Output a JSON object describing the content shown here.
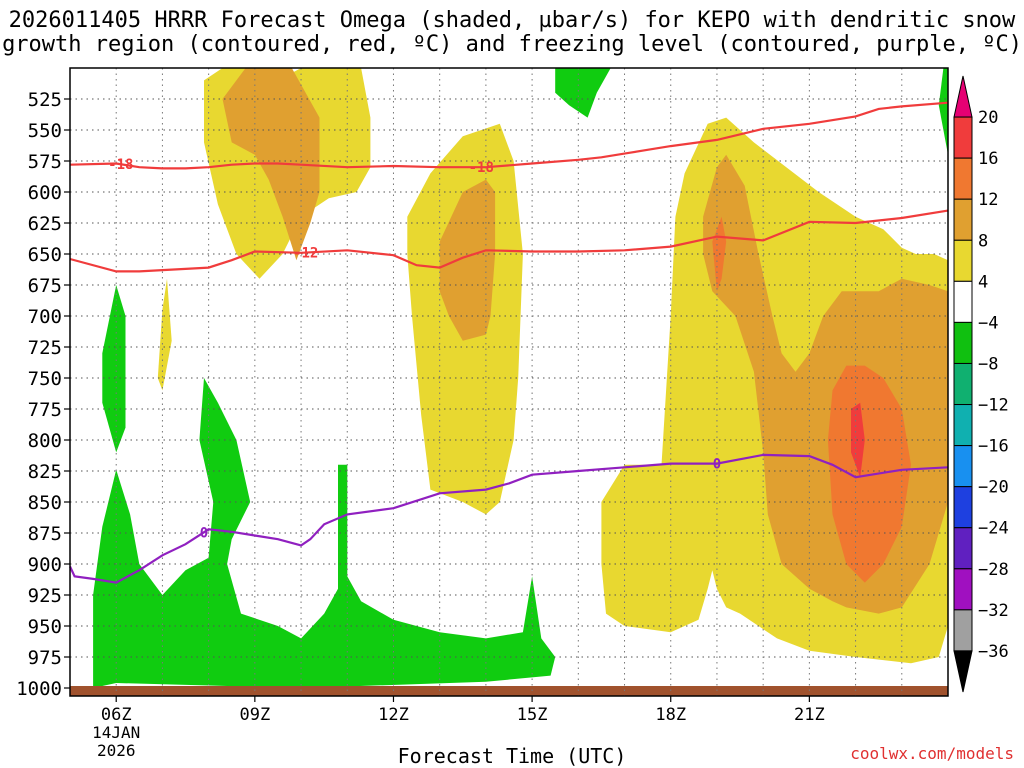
{
  "title_line1": "2026011405 HRRR Forecast Omega (shaded, µbar/s) for KEPO with dendritic snow",
  "title_line2": "growth region (contoured, red, ºC) and freezing level (contoured, purple, ºC)",
  "xlabel": "Forecast Time (UTC)",
  "credit": "coolwx.com/models",
  "chart_data": {
    "type": "heatmap",
    "x_range": [
      5,
      24
    ],
    "y_range": [
      1000,
      500
    ],
    "y_ticks": [
      525,
      550,
      575,
      600,
      625,
      650,
      675,
      700,
      725,
      750,
      775,
      800,
      825,
      850,
      875,
      900,
      925,
      950,
      975,
      1000
    ],
    "y_tick_labels": [
      "525",
      "550",
      "575",
      "600",
      "625",
      "650",
      "675",
      "700",
      "725",
      "750",
      "775",
      "800",
      "825",
      "850",
      "875",
      "900",
      "925",
      "950",
      "975",
      "1000"
    ],
    "x_ticks": [
      {
        "x": 6,
        "label": "06Z",
        "sub1": "14JAN",
        "sub2": "2026"
      },
      {
        "x": 9,
        "label": "09Z"
      },
      {
        "x": 12,
        "label": "12Z"
      },
      {
        "x": 15,
        "label": "15Z"
      },
      {
        "x": 18,
        "label": "18Z"
      },
      {
        "x": 21,
        "label": "21Z"
      }
    ],
    "colorbar": {
      "levels": [
        20,
        16,
        12,
        8,
        4,
        -4,
        -8,
        -12,
        -16,
        -20,
        -24,
        -28,
        -32,
        -36
      ],
      "labels": [
        "20",
        "16",
        "12",
        "8",
        "4",
        "−4",
        "−8",
        "−12",
        "−16",
        "−20",
        "−24",
        "−28",
        "−32",
        "−36"
      ],
      "colors": [
        "#e60073",
        "#f03c3c",
        "#f07830",
        "#e0a030",
        "#e8d830",
        "#ffffff",
        "#10c010",
        "#10b070",
        "#10b0b0",
        "#1890f0",
        "#1e40e0",
        "#6020c0",
        "#a010c0",
        "#a0a0a0",
        "#000000"
      ]
    },
    "fill_colors": {
      "green": "#10cc10",
      "yellow": "#e8d830",
      "orange": "#e0a030",
      "dark_orange": "#f07830",
      "red": "#f03c3c",
      "ground": "#a0522d"
    },
    "shading": [
      {
        "level": "green",
        "points": [
          [
            5.5,
            1000
          ],
          [
            5.5,
            925
          ],
          [
            5.7,
            870
          ],
          [
            6,
            824
          ],
          [
            6.3,
            860
          ],
          [
            6.5,
            900
          ],
          [
            7,
            925
          ],
          [
            7.5,
            905
          ],
          [
            8,
            895
          ],
          [
            8.1,
            850
          ],
          [
            7.8,
            800
          ],
          [
            7.9,
            750
          ],
          [
            8.2,
            770
          ],
          [
            8.6,
            800
          ],
          [
            8.9,
            850
          ],
          [
            8.5,
            880
          ],
          [
            8.4,
            900
          ],
          [
            8.7,
            940
          ],
          [
            9.5,
            950
          ],
          [
            10,
            960
          ],
          [
            10.5,
            940
          ],
          [
            10.8,
            920
          ],
          [
            10.8,
            820
          ],
          [
            11,
            820
          ],
          [
            11,
            910
          ],
          [
            11.3,
            930
          ],
          [
            12,
            945
          ],
          [
            13,
            955
          ],
          [
            14,
            960
          ],
          [
            14.8,
            955
          ],
          [
            15,
            910
          ],
          [
            15.2,
            960
          ],
          [
            15.5,
            975
          ],
          [
            15.4,
            990
          ],
          [
            14,
            995
          ],
          [
            10,
            1000
          ],
          [
            8,
            998
          ],
          [
            6,
            996
          ]
        ]
      },
      {
        "level": "green",
        "points": [
          [
            5.7,
            730
          ],
          [
            6.0,
            675
          ],
          [
            6.2,
            700
          ],
          [
            6.2,
            790
          ],
          [
            6.0,
            810
          ],
          [
            5.7,
            770
          ]
        ]
      },
      {
        "level": "green",
        "points": [
          [
            15.5,
            500
          ],
          [
            16.7,
            500
          ],
          [
            16.4,
            520
          ],
          [
            16.2,
            540
          ],
          [
            15.8,
            530
          ],
          [
            15.5,
            520
          ]
        ]
      },
      {
        "level": "green",
        "points": [
          [
            23.9,
            500
          ],
          [
            24,
            500
          ],
          [
            24,
            570
          ],
          [
            23.8,
            530
          ]
        ]
      },
      {
        "level": "yellow",
        "points": [
          [
            6.9,
            750
          ],
          [
            7.0,
            695
          ],
          [
            7.1,
            670
          ],
          [
            7.2,
            720
          ],
          [
            7.0,
            760
          ]
        ]
      },
      {
        "level": "yellow",
        "points": [
          [
            7.9,
            510
          ],
          [
            8.3,
            500
          ],
          [
            9,
            500
          ],
          [
            9,
            520
          ],
          [
            10,
            500
          ],
          [
            11.3,
            500
          ],
          [
            11.5,
            540
          ],
          [
            11.5,
            580
          ],
          [
            11.2,
            600
          ],
          [
            10.6,
            605
          ],
          [
            10,
            620
          ],
          [
            9.6,
            650
          ],
          [
            9.1,
            670
          ],
          [
            8.6,
            650
          ],
          [
            8.2,
            610
          ],
          [
            7.9,
            560
          ]
        ]
      },
      {
        "level": "yellow",
        "points": [
          [
            12.3,
            620
          ],
          [
            12.8,
            585
          ],
          [
            13.5,
            555
          ],
          [
            14.3,
            545
          ],
          [
            14.6,
            575
          ],
          [
            14.8,
            650
          ],
          [
            14.7,
            750
          ],
          [
            14.6,
            800
          ],
          [
            14.3,
            850
          ],
          [
            14,
            860
          ],
          [
            13.5,
            850
          ],
          [
            12.8,
            840
          ],
          [
            12.6,
            780
          ],
          [
            12.4,
            700
          ],
          [
            12.3,
            650
          ]
        ]
      },
      {
        "level": "yellow",
        "points": [
          [
            16.5,
            850
          ],
          [
            17,
            820
          ],
          [
            17.8,
            820
          ],
          [
            18,
            700
          ],
          [
            18.1,
            620
          ],
          [
            18.3,
            585
          ],
          [
            18.8,
            545
          ],
          [
            19.2,
            540
          ],
          [
            19.8,
            560
          ],
          [
            20.5,
            580
          ],
          [
            21.2,
            600
          ],
          [
            22,
            620
          ],
          [
            22.6,
            630
          ],
          [
            23,
            645
          ],
          [
            23.3,
            650
          ],
          [
            23.7,
            650
          ],
          [
            24,
            655
          ],
          [
            24,
            950
          ],
          [
            23.8,
            975
          ],
          [
            23.2,
            980
          ],
          [
            22,
            975
          ],
          [
            21,
            970
          ],
          [
            20.3,
            960
          ],
          [
            19.5,
            940
          ],
          [
            19.2,
            935
          ],
          [
            19,
            920
          ],
          [
            18.9,
            905
          ],
          [
            18.8,
            920
          ],
          [
            18.6,
            945
          ],
          [
            18,
            955
          ],
          [
            17,
            950
          ],
          [
            16.6,
            940
          ],
          [
            16.5,
            900
          ]
        ]
      },
      {
        "level": "orange",
        "points": [
          [
            8.3,
            525
          ],
          [
            8.8,
            500
          ],
          [
            9.8,
            500
          ],
          [
            10.4,
            540
          ],
          [
            10.4,
            600
          ],
          [
            10.2,
            625
          ],
          [
            9.9,
            655
          ],
          [
            9.6,
            620
          ],
          [
            9.3,
            590
          ],
          [
            9,
            570
          ],
          [
            8.5,
            560
          ]
        ]
      },
      {
        "level": "orange",
        "points": [
          [
            13,
            640
          ],
          [
            13.5,
            600
          ],
          [
            14,
            590
          ],
          [
            14.2,
            600
          ],
          [
            14.2,
            650
          ],
          [
            14.1,
            700
          ],
          [
            14,
            715
          ],
          [
            13.5,
            720
          ],
          [
            13.2,
            700
          ],
          [
            13,
            680
          ]
        ]
      },
      {
        "level": "orange",
        "points": [
          [
            18.7,
            620
          ],
          [
            19,
            580
          ],
          [
            19.2,
            570
          ],
          [
            19.6,
            595
          ],
          [
            19.9,
            650
          ],
          [
            20.2,
            700
          ],
          [
            20.4,
            730
          ],
          [
            20.7,
            745
          ],
          [
            21,
            730
          ],
          [
            21.3,
            700
          ],
          [
            21.7,
            680
          ],
          [
            22.5,
            680
          ],
          [
            23,
            670
          ],
          [
            23.6,
            675
          ],
          [
            24,
            680
          ],
          [
            24,
            850
          ],
          [
            23.6,
            900
          ],
          [
            23,
            935
          ],
          [
            22.5,
            940
          ],
          [
            21.8,
            935
          ],
          [
            21.5,
            930
          ],
          [
            21,
            920
          ],
          [
            20.4,
            900
          ],
          [
            20.1,
            860
          ],
          [
            20,
            810
          ],
          [
            19.8,
            745
          ],
          [
            19.4,
            700
          ],
          [
            18.9,
            680
          ],
          [
            18.7,
            650
          ]
        ]
      },
      {
        "level": "dark_orange",
        "points": [
          [
            18.9,
            640
          ],
          [
            19.1,
            620
          ],
          [
            19.2,
            640
          ],
          [
            19.1,
            670
          ],
          [
            19.0,
            680
          ]
        ]
      },
      {
        "level": "dark_orange",
        "points": [
          [
            21.5,
            760
          ],
          [
            21.8,
            740
          ],
          [
            22.2,
            740
          ],
          [
            22.6,
            750
          ],
          [
            23.0,
            775
          ],
          [
            23.2,
            820
          ],
          [
            23,
            870
          ],
          [
            22.6,
            900
          ],
          [
            22.2,
            915
          ],
          [
            21.8,
            900
          ],
          [
            21.5,
            860
          ],
          [
            21.4,
            800
          ]
        ]
      },
      {
        "level": "red",
        "points": [
          [
            21.9,
            775
          ],
          [
            22.1,
            770
          ],
          [
            22.2,
            800
          ],
          [
            22.1,
            830
          ],
          [
            21.9,
            810
          ]
        ]
      }
    ],
    "contours": [
      {
        "name": "-18",
        "color": "#f03c3c",
        "label_positions": [
          6.1,
          13.9
        ],
        "points": [
          [
            5,
            578
          ],
          [
            6,
            577
          ],
          [
            6.5,
            580
          ],
          [
            7,
            581
          ],
          [
            7.5,
            581
          ],
          [
            8,
            580
          ],
          [
            8.5,
            578
          ],
          [
            9,
            577
          ],
          [
            9.5,
            577
          ],
          [
            10,
            578
          ],
          [
            11,
            580
          ],
          [
            12,
            579
          ],
          [
            13,
            580
          ],
          [
            14,
            580
          ],
          [
            15,
            577
          ],
          [
            16,
            574
          ],
          [
            16.5,
            572
          ],
          [
            17,
            569
          ],
          [
            17.5,
            566
          ],
          [
            18,
            563
          ],
          [
            19,
            558
          ],
          [
            20,
            549
          ],
          [
            21,
            545
          ],
          [
            22,
            539
          ],
          [
            22.5,
            533
          ],
          [
            23,
            531
          ],
          [
            24,
            528
          ]
        ]
      },
      {
        "name": "-12",
        "color": "#f03c3c",
        "label_positions": [
          10.1
        ],
        "points": [
          [
            5,
            654
          ],
          [
            6,
            664
          ],
          [
            6.5,
            664
          ],
          [
            7,
            663
          ],
          [
            8,
            661
          ],
          [
            8.5,
            655
          ],
          [
            9,
            648
          ],
          [
            10,
            649
          ],
          [
            11,
            647
          ],
          [
            12,
            651
          ],
          [
            12.5,
            659
          ],
          [
            13,
            661
          ],
          [
            13.5,
            653
          ],
          [
            14,
            647
          ],
          [
            15,
            648
          ],
          [
            16,
            648
          ],
          [
            17,
            647
          ],
          [
            18,
            644
          ],
          [
            19,
            636
          ],
          [
            20,
            639
          ],
          [
            21,
            624
          ],
          [
            22,
            625
          ],
          [
            23,
            621
          ],
          [
            24,
            615
          ]
        ]
      },
      {
        "name": "0",
        "color": "#9020c0",
        "label_positions": [
          7.9,
          19.0
        ],
        "points": [
          [
            5,
            902
          ],
          [
            5.1,
            910
          ],
          [
            5.5,
            912
          ],
          [
            6,
            915
          ],
          [
            6.5,
            905
          ],
          [
            7,
            893
          ],
          [
            7.5,
            884
          ],
          [
            8,
            872
          ],
          [
            8.5,
            874
          ],
          [
            9,
            877
          ],
          [
            9.5,
            880
          ],
          [
            10,
            885
          ],
          [
            10.2,
            880
          ],
          [
            10.5,
            868
          ],
          [
            11,
            860
          ],
          [
            12,
            855
          ],
          [
            13,
            843
          ],
          [
            14,
            840
          ],
          [
            14.5,
            835
          ],
          [
            15,
            828
          ],
          [
            16,
            825
          ],
          [
            17,
            822
          ],
          [
            18,
            819
          ],
          [
            19,
            819
          ],
          [
            20,
            812
          ],
          [
            21,
            813
          ],
          [
            21.5,
            820
          ],
          [
            22,
            830
          ],
          [
            23,
            824
          ],
          [
            24,
            822
          ]
        ]
      }
    ]
  }
}
